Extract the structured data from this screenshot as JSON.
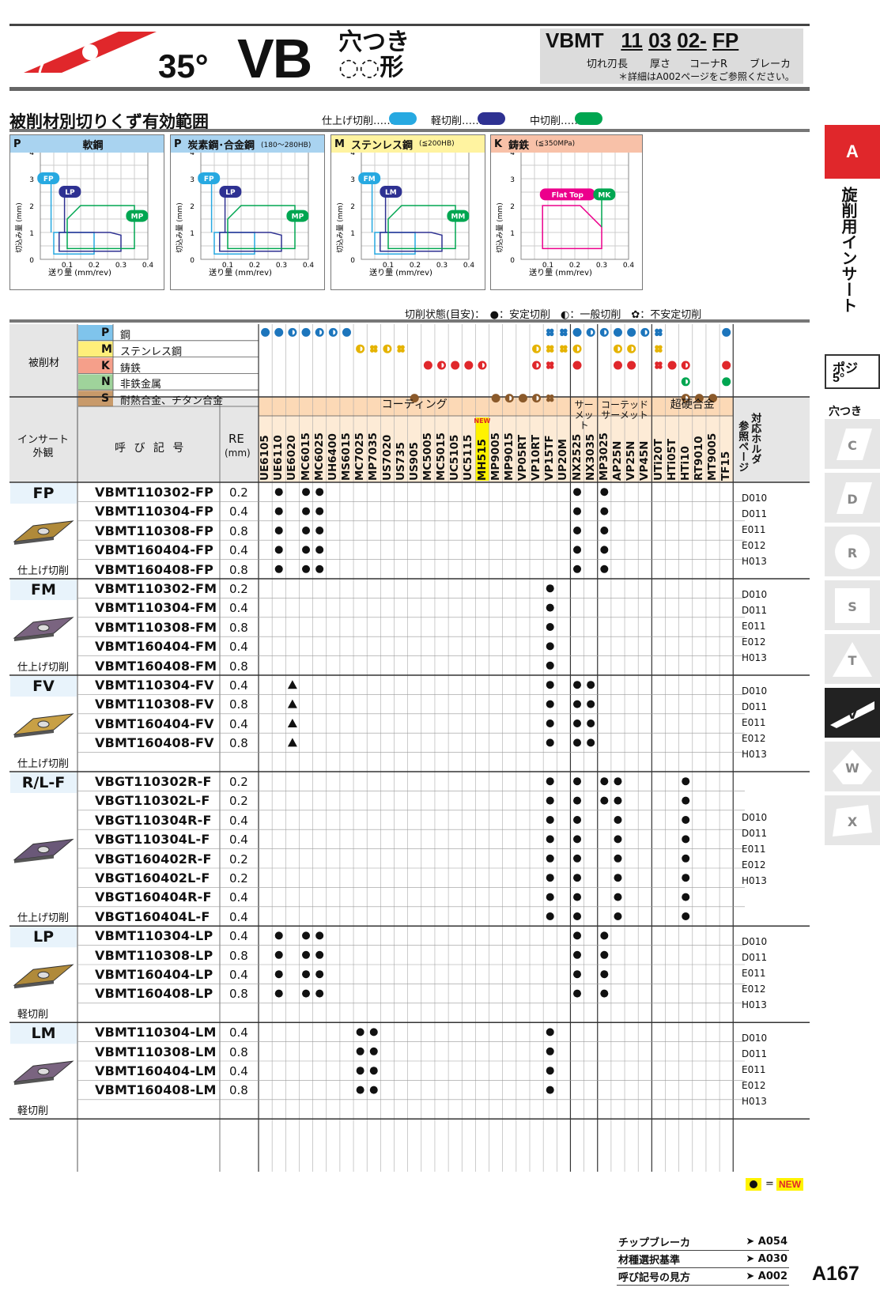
{
  "header": {
    "angle": "35°",
    "shape": "VB",
    "hole_type_line1": "穴つき",
    "hole_type_line2": "◌◌形",
    "code": {
      "base": "VBMT",
      "p1": "11",
      "p2": "03",
      "p3": "02-",
      "p4": "FP"
    },
    "code_labels": [
      "切れ刃長",
      "厚さ",
      "コーナR",
      "ブレーカ"
    ],
    "note": "＊詳細はA002ページをご参照ください。"
  },
  "section_title": "被削材別切りくず有効範囲",
  "legend_modes": [
    {
      "label": "仕上げ切削……",
      "color": "#27a9e1"
    },
    {
      "label": "軽切削……",
      "color": "#2e3192"
    },
    {
      "label": "中切削……",
      "color": "#00a651"
    }
  ],
  "chip_charts": [
    {
      "mat": "P",
      "name": "軟鋼",
      "note": "",
      "bg": "#a9d3f0",
      "labels": [
        {
          "t": "FP",
          "c": "#27a9e1"
        },
        {
          "t": "LP",
          "c": "#2e3192"
        },
        {
          "t": "MP",
          "c": "#00a651"
        }
      ]
    },
    {
      "mat": "P",
      "name": "炭素鋼･合金鋼",
      "note": "(180〜280HB)",
      "bg": "#a9d3f0",
      "labels": [
        {
          "t": "FP",
          "c": "#27a9e1"
        },
        {
          "t": "LP",
          "c": "#2e3192"
        },
        {
          "t": "MP",
          "c": "#00a651"
        }
      ]
    },
    {
      "mat": "M",
      "name": "ステンレス鋼",
      "note": "(≦200HB)",
      "bg": "#fff3a0",
      "labels": [
        {
          "t": "FM",
          "c": "#27a9e1"
        },
        {
          "t": "LM",
          "c": "#2e3192"
        },
        {
          "t": "MM",
          "c": "#00a651"
        }
      ]
    },
    {
      "mat": "K",
      "name": "鋳鉄",
      "note": "(≦350MPa)",
      "bg": "#f8c1a8",
      "labels": [
        {
          "t": "Flat Top",
          "c": "#ec008c"
        },
        {
          "t": "MK",
          "c": "#00a651"
        }
      ]
    }
  ],
  "chart_axis": {
    "ylabel": "切込み量 (mm)",
    "xlabel": "送り量 (mm/rev)",
    "yticks": [
      "4",
      "3",
      "2",
      "1",
      "0"
    ],
    "xticks": [
      "0.1",
      "0.2",
      "0.3",
      "0.4"
    ]
  },
  "state_legend": "切削状態(目安)：　●：安定切削　◐：一般切削　✿：不安定切削",
  "materials": [
    {
      "code": "P",
      "name": "鋼",
      "color": "#7fc4ec"
    },
    {
      "code": "M",
      "name": "ステンレス鋼",
      "color": "#ffef7a"
    },
    {
      "code": "K",
      "name": "鋳鉄",
      "color": "#f59f8a"
    },
    {
      "code": "N",
      "name": "非鉄金属",
      "color": "#9fd39b"
    },
    {
      "code": "S",
      "name": "耐熱合金、チタン合金",
      "color": "#c89a6a"
    }
  ],
  "labels": {
    "material_head": "被削材",
    "insert_head": "インサート\n外観",
    "code_head": "呼 び 記 号",
    "re_head": "RE",
    "re_unit": "(mm)",
    "ref_head": "参照ページ",
    "holder_head": "対応ホルダ",
    "new_tag": "NEW",
    "legend_new": "NEW",
    "legend_eq": "="
  },
  "grade_groups": [
    {
      "name": "コーティング",
      "count": 23
    },
    {
      "name": "サーメット",
      "count": 2
    },
    {
      "name": "コーテッドサーメット",
      "count": 4
    },
    {
      "name": "超硬合金",
      "count": 6
    }
  ],
  "grades": [
    "UE6105",
    "UE6110",
    "UE6020",
    "MC6015",
    "MC6025",
    "UH6400",
    "MS6015",
    "MC7025",
    "MP7035",
    "US7020",
    "US735",
    "US905",
    "MC5005",
    "MC5015",
    "UC5105",
    "UC5115",
    "MH515",
    "MP9005",
    "MP9015",
    "VP05RT",
    "VP10RT",
    "VP15TF",
    "UP20M",
    "NX2525",
    "NX3035",
    "MP3025",
    "AP25N",
    "VP25N",
    "VP45N",
    "UTi20T",
    "HTi05T",
    "HTi10",
    "RT9010",
    "MT9005",
    "TF15"
  ],
  "suitability": {
    "P": [
      "s",
      "s",
      "g",
      "s",
      "g",
      "g",
      "s",
      "",
      "",
      "",
      "",
      "",
      "",
      "",
      "",
      "",
      "",
      "",
      "",
      "",
      "",
      "u",
      "u",
      "s",
      "g",
      "g",
      "s",
      "s",
      "g",
      "u",
      "",
      "",
      "",
      "",
      "s"
    ],
    "M": [
      "",
      "",
      "",
      "",
      "",
      "",
      "",
      "g",
      "u",
      "g",
      "u",
      "",
      "",
      "",
      "",
      "",
      "",
      "",
      "",
      "",
      "g",
      "u",
      "u",
      "g",
      "",
      "",
      "g",
      "g",
      "",
      "u",
      "",
      "",
      "",
      "",
      ""
    ],
    "K": [
      "",
      "",
      "",
      "",
      "",
      "",
      "",
      "",
      "",
      "",
      "",
      "",
      "s",
      "g",
      "s",
      "s",
      "g",
      "",
      "",
      "",
      "g",
      "u",
      "",
      "s",
      "",
      "",
      "s",
      "s",
      "",
      "u",
      "s",
      "g",
      "",
      "",
      "s"
    ],
    "N": [
      "",
      "",
      "",
      "",
      "",
      "",
      "",
      "",
      "",
      "",
      "",
      "",
      "",
      "",
      "",
      "",
      "",
      "",
      "",
      "",
      "",
      "",
      "",
      "",
      "",
      "",
      "",
      "",
      "",
      "",
      "",
      "g",
      "",
      "",
      "s"
    ],
    "S": [
      "",
      "",
      "",
      "",
      "",
      "",
      "",
      "",
      "",
      "",
      "",
      "s",
      "",
      "",
      "",
      "",
      "",
      "s",
      "g",
      "s",
      "g",
      "u",
      "",
      "",
      "",
      "",
      "",
      "",
      "",
      "",
      "",
      "g",
      "s",
      "s",
      ""
    ]
  },
  "groups": [
    {
      "name": "FP",
      "sub": "仕上げ切削",
      "refs": [
        "D010",
        "D011",
        "E011",
        "E012",
        "H013"
      ],
      "insert_color": "#b08a3a",
      "rows": [
        {
          "code": "VBMT110302-FP",
          "re": "0.2",
          "m": "1,3,4,23,25"
        },
        {
          "code": "VBMT110304-FP",
          "re": "0.4",
          "m": "1,3,4,23,25"
        },
        {
          "code": "VBMT110308-FP",
          "re": "0.8",
          "m": "1,3,4,23,25"
        },
        {
          "code": "VBMT160404-FP",
          "re": "0.4",
          "m": "1,3,4,23,25"
        },
        {
          "code": "VBMT160408-FP",
          "re": "0.8",
          "m": "1,3,4,23,25"
        }
      ]
    },
    {
      "name": "FM",
      "sub": "仕上げ切削",
      "refs": [
        "D010",
        "D011",
        "E011",
        "E012",
        "H013"
      ],
      "insert_color": "#7a6480",
      "rows": [
        {
          "code": "VBMT110302-FM",
          "re": "0.2",
          "m": "21"
        },
        {
          "code": "VBMT110304-FM",
          "re": "0.4",
          "m": "21"
        },
        {
          "code": "VBMT110308-FM",
          "re": "0.8",
          "m": "21"
        },
        {
          "code": "VBMT160404-FM",
          "re": "0.4",
          "m": "21"
        },
        {
          "code": "VBMT160408-FM",
          "re": "0.8",
          "m": "21"
        }
      ]
    },
    {
      "name": "FV",
      "sub": "仕上げ切削",
      "refs": [
        "D010",
        "D011",
        "E011",
        "E012",
        "H013"
      ],
      "insert_color": "#c8a045",
      "rows": [
        {
          "code": "VBMT110304-FV",
          "re": "0.4",
          "m": "t2,21,23,24"
        },
        {
          "code": "VBMT110308-FV",
          "re": "0.8",
          "m": "t2,21,23,24"
        },
        {
          "code": "VBMT160404-FV",
          "re": "0.4",
          "m": "t2,21,23,24"
        },
        {
          "code": "VBMT160408-FV",
          "re": "0.8",
          "m": "t2,21,23,24"
        },
        {
          "code": "",
          "re": "",
          "m": ""
        }
      ]
    },
    {
      "name": "R/L-F",
      "sub": "仕上げ切削",
      "refs": [
        "D010",
        "D011",
        "E011",
        "E012",
        "H013"
      ],
      "insert_color": "#6a5878",
      "rows": [
        {
          "code": "VBGT110302R-F",
          "re": "0.2",
          "m": "21,23,25,26,31"
        },
        {
          "code": "VBGT110302L-F",
          "re": "0.2",
          "m": "21,23,25,26,31"
        },
        {
          "code": "VBGT110304R-F",
          "re": "0.4",
          "m": "21,23,26,31"
        },
        {
          "code": "VBGT110304L-F",
          "re": "0.4",
          "m": "21,23,26,31"
        },
        {
          "code": "VBGT160402R-F",
          "re": "0.2",
          "m": "21,23,26,31"
        },
        {
          "code": "VBGT160402L-F",
          "re": "0.2",
          "m": "21,23,26,31"
        },
        {
          "code": "VBGT160404R-F",
          "re": "0.4",
          "m": "21,23,26,31"
        },
        {
          "code": "VBGT160404L-F",
          "re": "0.4",
          "m": "21,23,26,31"
        }
      ]
    },
    {
      "name": "LP",
      "sub": "軽切削",
      "refs": [
        "D010",
        "D011",
        "E011",
        "E012",
        "H013"
      ],
      "insert_color": "#b08a3a",
      "rows": [
        {
          "code": "VBMT110304-LP",
          "re": "0.4",
          "m": "1,3,4,23,25"
        },
        {
          "code": "VBMT110308-LP",
          "re": "0.8",
          "m": "1,3,4,23,25"
        },
        {
          "code": "VBMT160404-LP",
          "re": "0.4",
          "m": "1,3,4,23,25"
        },
        {
          "code": "VBMT160408-LP",
          "re": "0.8",
          "m": "1,3,4,23,25"
        },
        {
          "code": "",
          "re": "",
          "m": ""
        }
      ]
    },
    {
      "name": "LM",
      "sub": "軽切削",
      "refs": [
        "D010",
        "D011",
        "E011",
        "E012",
        "H013"
      ],
      "insert_color": "#7a6480",
      "rows": [
        {
          "code": "VBMT110304-LM",
          "re": "0.4",
          "m": "7,8,21"
        },
        {
          "code": "VBMT110308-LM",
          "re": "0.8",
          "m": "7,8,21"
        },
        {
          "code": "VBMT160404-LM",
          "re": "0.4",
          "m": "7,8,21"
        },
        {
          "code": "VBMT160408-LM",
          "re": "0.8",
          "m": "7,8,21"
        },
        {
          "code": "",
          "re": "",
          "m": ""
        }
      ]
    }
  ],
  "side_tabs": {
    "active": "A",
    "vertical": "旋削用インサート",
    "posi": "ポジ",
    "posi_deg": "5°",
    "hole": "穴つき",
    "shapes": [
      "C",
      "D",
      "R",
      "S",
      "T",
      "V",
      "W",
      "X"
    ]
  },
  "footer_links": [
    {
      "label": "チップブレーカ",
      "ref": "A054"
    },
    {
      "label": "材種選択基準",
      "ref": "A030"
    },
    {
      "label": "呼び記号の見方",
      "ref": "A002"
    }
  ],
  "page_number": "A167"
}
